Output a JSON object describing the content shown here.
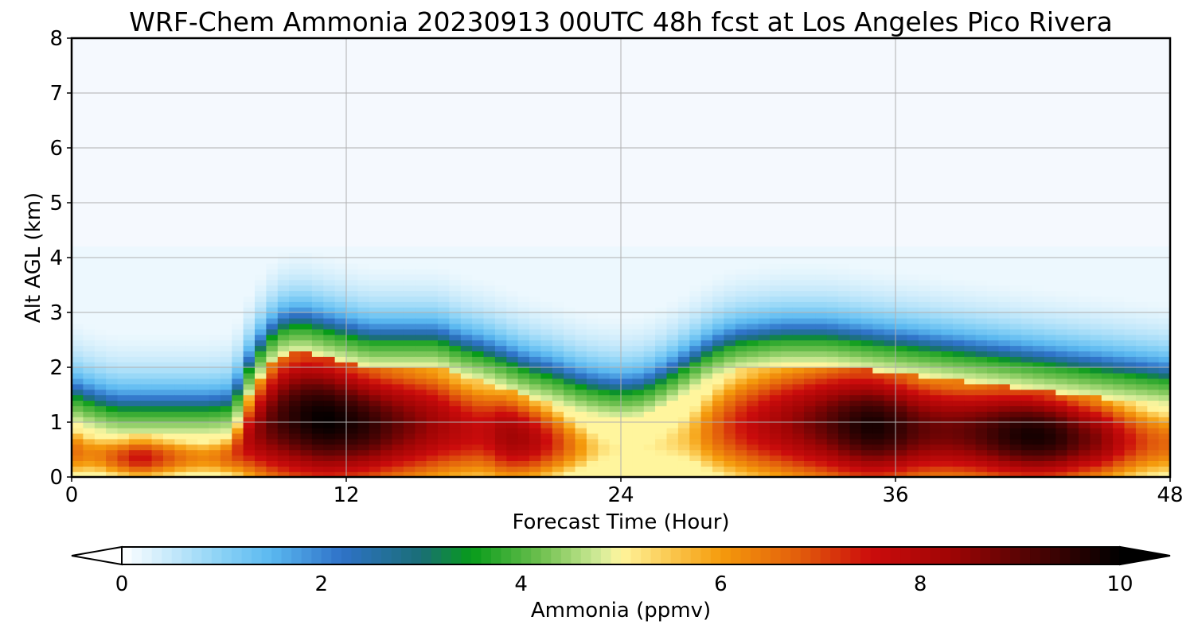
{
  "chart_data": {
    "type": "heatmap",
    "title": "WRF-Chem Ammonia  20230913 00UTC 48h fcst at Los Angeles Pico Rivera",
    "xlabel": "Forecast Time (Hour)",
    "ylabel": "Alt AGL (km)",
    "xlim": [
      0,
      48
    ],
    "ylim": [
      0,
      8
    ],
    "xticks": [
      0,
      12,
      24,
      36,
      48
    ],
    "yticks": [
      0,
      1,
      2,
      3,
      4,
      5,
      6,
      7,
      8
    ],
    "grid": true,
    "colorbar": {
      "label": "Ammonia  (ppmv)",
      "range": [
        0,
        10
      ],
      "ticks": [
        0,
        2,
        4,
        6,
        8,
        10
      ],
      "extend": "both",
      "colors": [
        {
          "v": 0,
          "c": "#ffffff"
        },
        {
          "v": 1,
          "c": "#8ad2f6"
        },
        {
          "v": 1.5,
          "c": "#5ab8f0"
        },
        {
          "v": 2.2,
          "c": "#2f72c8"
        },
        {
          "v": 3,
          "c": "#1a6e76"
        },
        {
          "v": 3.5,
          "c": "#079b1a"
        },
        {
          "v": 4.2,
          "c": "#6ec04f"
        },
        {
          "v": 4.8,
          "c": "#d5ec9a"
        },
        {
          "v": 5,
          "c": "#fff59d"
        },
        {
          "v": 5.5,
          "c": "#fbc84f"
        },
        {
          "v": 6,
          "c": "#f59b0c"
        },
        {
          "v": 6.8,
          "c": "#e25c0c"
        },
        {
          "v": 7.5,
          "c": "#cc0c0c"
        },
        {
          "v": 8.3,
          "c": "#a00505"
        },
        {
          "v": 9,
          "c": "#5a0404"
        },
        {
          "v": 10,
          "c": "#000000"
        }
      ]
    },
    "field": {
      "description_units": "ppmv",
      "hours": [
        0,
        1,
        2,
        3,
        4,
        5,
        6,
        7,
        8,
        9,
        10,
        11,
        12,
        13,
        14,
        15,
        16,
        17,
        18,
        19,
        20,
        21,
        22,
        23,
        24,
        25,
        26,
        27,
        28,
        29,
        30,
        31,
        32,
        33,
        34,
        35,
        36,
        37,
        38,
        39,
        40,
        41,
        42,
        43,
        44,
        45,
        46,
        47,
        48
      ],
      "top_of_polluted_layer_km": [
        1.0,
        0.85,
        0.75,
        0.75,
        0.75,
        0.75,
        0.75,
        0.8,
        1.7,
        2.2,
        2.3,
        2.2,
        2.1,
        2.0,
        2.0,
        2.0,
        2.0,
        1.85,
        1.75,
        1.6,
        1.45,
        1.35,
        1.2,
        1.1,
        1.05,
        1.1,
        1.3,
        1.55,
        1.8,
        1.95,
        2.0,
        2.05,
        2.05,
        2.05,
        2.0,
        1.95,
        1.9,
        1.85,
        1.8,
        1.75,
        1.7,
        1.65,
        1.6,
        1.55,
        1.5,
        1.45,
        1.4,
        1.35,
        1.3
      ],
      "core_ammonia_ppmv": [
        6.6,
        6.2,
        6.9,
        7.6,
        7.0,
        6.4,
        6.2,
        6.8,
        8.3,
        9.2,
        9.7,
        10.0,
        9.8,
        9.5,
        9.0,
        8.6,
        8.2,
        7.8,
        7.6,
        8.3,
        8.1,
        7.3,
        6.3,
        5.3,
        5.0,
        5.0,
        5.2,
        5.6,
        6.6,
        7.3,
        7.8,
        8.2,
        8.6,
        9.0,
        9.5,
        9.8,
        9.5,
        9.0,
        8.8,
        8.9,
        9.2,
        9.6,
        9.8,
        9.6,
        9.0,
        8.5,
        7.6,
        6.9,
        6.6
      ]
    }
  }
}
